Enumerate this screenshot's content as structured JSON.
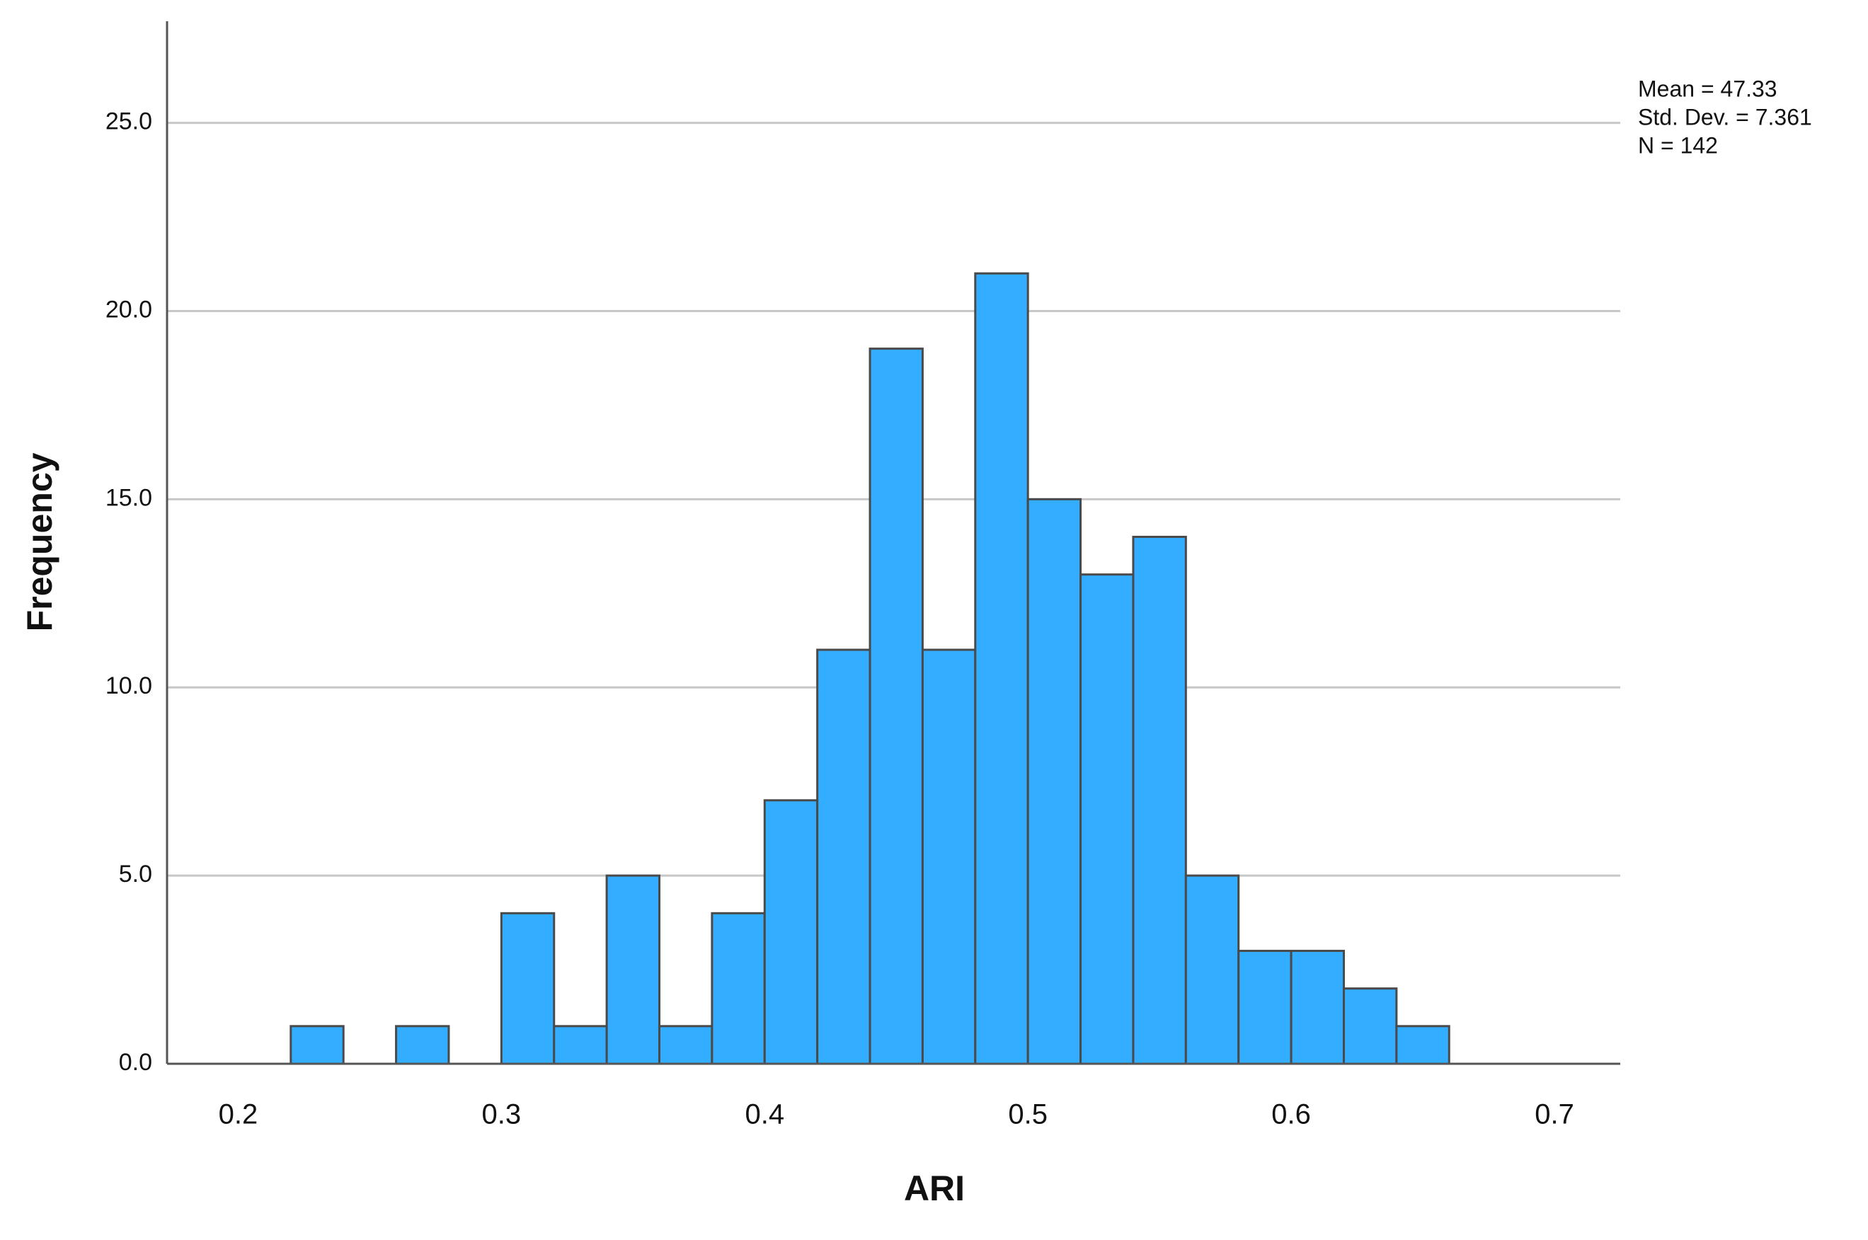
{
  "chart_data": {
    "type": "histogram",
    "x_label": "ARI",
    "y_label": "Frequency",
    "annotations": [
      "Mean = 47.33",
      "Std. Dev. = 7.361",
      "N = 142"
    ],
    "bins": [
      0.22,
      0.24,
      0.26,
      0.28,
      0.3,
      0.32,
      0.34,
      0.36,
      0.38,
      0.4,
      0.42,
      0.44,
      0.46,
      0.48,
      0.5,
      0.52,
      0.54,
      0.56,
      0.58,
      0.6,
      0.62,
      0.64,
      0.66
    ],
    "values": [
      1,
      0,
      1,
      0,
      4,
      1,
      5,
      1,
      4,
      7,
      11,
      19,
      11,
      21,
      15,
      13,
      14,
      5,
      3,
      3,
      2,
      1
    ],
    "color": "#33adff",
    "xlim": [
      0.173,
      0.725
    ],
    "xticks": [
      0.2,
      0.3,
      0.4,
      0.5,
      0.6,
      0.7
    ],
    "ylim": [
      0,
      27.7
    ],
    "yticks": [
      {
        "value": 0,
        "label": "0.0"
      },
      {
        "value": 5,
        "label": "5.0"
      },
      {
        "value": 10,
        "label": "10.0"
      },
      {
        "value": 15,
        "label": "15.0"
      },
      {
        "value": 20,
        "label": "20.0"
      },
      {
        "value": 25,
        "label": "25.0"
      }
    ],
    "grid": true
  }
}
